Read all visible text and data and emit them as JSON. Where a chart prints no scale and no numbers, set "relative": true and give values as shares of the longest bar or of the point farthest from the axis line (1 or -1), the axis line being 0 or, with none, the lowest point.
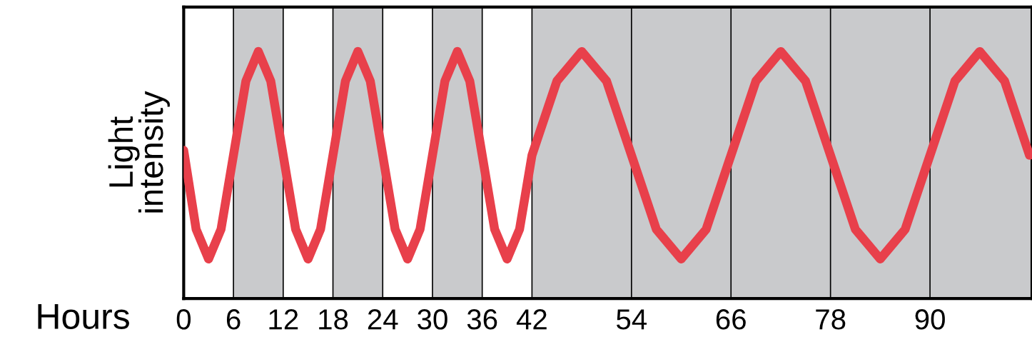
{
  "chart_data": {
    "type": "line",
    "relative": true,
    "xlabel": "Hours",
    "ylabel": "Light\nintensity",
    "tick_labels": "x",
    "xlim": [
      0,
      102.3
    ],
    "xticks": [
      0,
      6,
      12,
      18,
      24,
      30,
      36,
      42,
      54,
      66,
      78,
      90
    ],
    "x": [
      0,
      1.5,
      3,
      4.5,
      6,
      7.5,
      9,
      10.5,
      12,
      13.5,
      15,
      16.5,
      18,
      19.5,
      21,
      22.5,
      24,
      25.5,
      27,
      28.5,
      30,
      31.5,
      33,
      34.5,
      36,
      37.5,
      39,
      40.5,
      42,
      45,
      48,
      51,
      54,
      57,
      60,
      63,
      66,
      69,
      72,
      75,
      78,
      81,
      84,
      87,
      90,
      93,
      96,
      99,
      102
    ],
    "series": [
      {
        "color": "#e8404b",
        "values": [
          0.6,
          0.28,
          0.16,
          0.28,
          0.58,
          0.88,
          1,
          0.88,
          0.58,
          0.28,
          0.16,
          0.28,
          0.58,
          0.88,
          1,
          0.88,
          0.58,
          0.28,
          0.16,
          0.28,
          0.58,
          0.88,
          1,
          0.88,
          0.58,
          0.28,
          0.16,
          0.28,
          0.58,
          0.88,
          1,
          0.88,
          0.58,
          0.28,
          0.16,
          0.28,
          0.58,
          0.88,
          1,
          0.88,
          0.58,
          0.28,
          0.16,
          0.28,
          0.58,
          0.88,
          1,
          0.88,
          0.58
        ]
      }
    ],
    "bands": [
      {
        "axis": "x",
        "from": 6,
        "to": 12,
        "color": "#c9cacc"
      },
      {
        "axis": "x",
        "from": 18,
        "to": 24,
        "color": "#c9cacc"
      },
      {
        "axis": "x",
        "from": 30,
        "to": 36,
        "color": "#c9cacc"
      },
      {
        "axis": "x",
        "from": 42,
        "to": 102.3,
        "color": "#c9cacc"
      }
    ],
    "ref_lines": [
      {
        "axis": "x",
        "value": 6,
        "color": "#000000"
      },
      {
        "axis": "x",
        "value": 12,
        "color": "#000000"
      },
      {
        "axis": "x",
        "value": 18,
        "color": "#000000"
      },
      {
        "axis": "x",
        "value": 24,
        "color": "#000000"
      },
      {
        "axis": "x",
        "value": 30,
        "color": "#000000"
      },
      {
        "axis": "x",
        "value": 36,
        "color": "#000000"
      },
      {
        "axis": "x",
        "value": 42,
        "color": "#000000"
      },
      {
        "axis": "x",
        "value": 54,
        "color": "#000000"
      },
      {
        "axis": "x",
        "value": 66,
        "color": "#000000"
      },
      {
        "axis": "x",
        "value": 78,
        "color": "#000000"
      },
      {
        "axis": "x",
        "value": 90,
        "color": "#000000"
      }
    ]
  }
}
